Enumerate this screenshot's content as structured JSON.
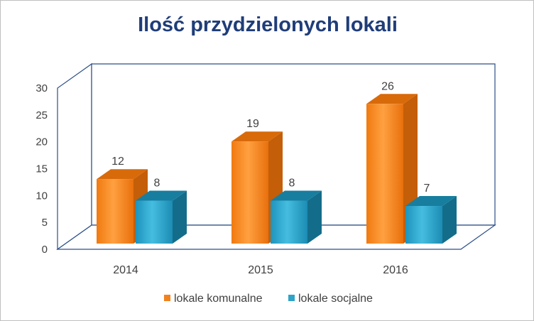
{
  "chart_data": {
    "type": "bar",
    "title": "Ilość przydzielonych lokali",
    "categories": [
      "2014",
      "2015",
      "2016"
    ],
    "series": [
      {
        "name": "lokale komunalne",
        "values": [
          12,
          19,
          26
        ],
        "color": "#f0821e"
      },
      {
        "name": "lokale socjalne",
        "values": [
          8,
          8,
          7
        ],
        "color": "#2fa3c8"
      }
    ],
    "ylim": [
      0,
      30
    ],
    "yticks": [
      0,
      5,
      10,
      15,
      20,
      25,
      30
    ],
    "xlabel": "",
    "ylabel": "",
    "grid": false,
    "legend_position": "bottom",
    "style": "3d-column"
  }
}
